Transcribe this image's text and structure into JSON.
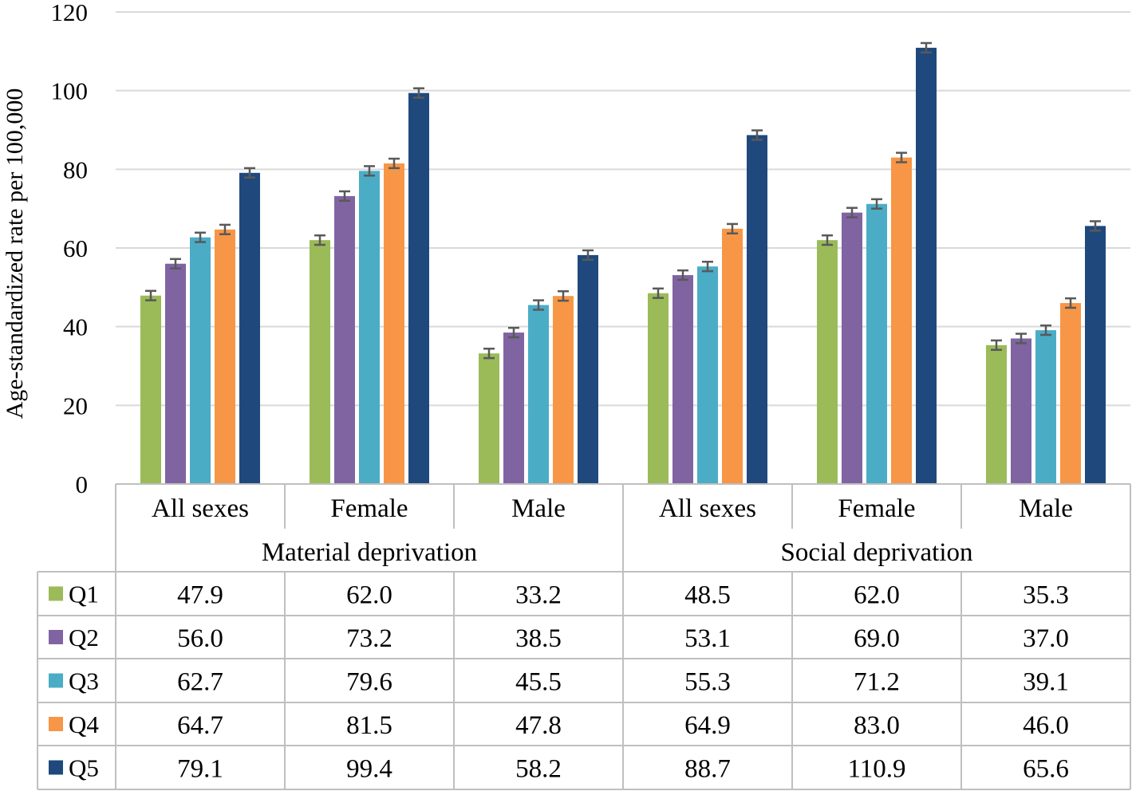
{
  "chart_data": {
    "type": "bar",
    "title": "",
    "xlabel": "",
    "ylabel": "Age-standardized rate per 100,000",
    "ylim": [
      0,
      120
    ],
    "yticks": [
      0,
      20,
      40,
      60,
      80,
      100,
      120
    ],
    "grid": true,
    "legend_position": "data-table-left",
    "groups": [
      {
        "name": "Material deprivation",
        "categories": [
          "All sexes",
          "Female",
          "Male"
        ]
      },
      {
        "name": "Social deprivation",
        "categories": [
          "All sexes",
          "Female",
          "Male"
        ]
      }
    ],
    "categories": [
      "All sexes",
      "Female",
      "Male",
      "All sexes",
      "Female",
      "Male"
    ],
    "series": [
      {
        "name": "Q1",
        "color": "#9BBB59",
        "values": [
          47.9,
          62.0,
          33.2,
          48.5,
          62.0,
          35.3
        ],
        "labels": [
          "47.9",
          "62.0",
          "33.2",
          "48.5",
          "62.0",
          "35.3"
        ]
      },
      {
        "name": "Q2",
        "color": "#8064A2",
        "values": [
          56.0,
          73.2,
          38.5,
          53.1,
          69.0,
          37.0
        ],
        "labels": [
          "56.0",
          "73.2",
          "38.5",
          "53.1",
          "69.0",
          "37.0"
        ]
      },
      {
        "name": "Q3",
        "color": "#4BACC6",
        "values": [
          62.7,
          79.6,
          45.5,
          55.3,
          71.2,
          39.1
        ],
        "labels": [
          "62.7",
          "79.6",
          "45.5",
          "55.3",
          "71.2",
          "39.1"
        ]
      },
      {
        "name": "Q4",
        "color": "#F79646",
        "values": [
          64.7,
          81.5,
          47.8,
          64.9,
          83.0,
          46.0
        ],
        "labels": [
          "64.7",
          "81.5",
          "47.8",
          "64.9",
          "83.0",
          "46.0"
        ]
      },
      {
        "name": "Q5",
        "color": "#1F497D",
        "values": [
          79.1,
          99.4,
          58.2,
          88.7,
          110.9,
          65.6
        ],
        "labels": [
          "79.1",
          "99.4",
          "58.2",
          "88.7",
          "110.9",
          "65.6"
        ]
      }
    ],
    "error_bar_halfwidth": 1.2
  }
}
